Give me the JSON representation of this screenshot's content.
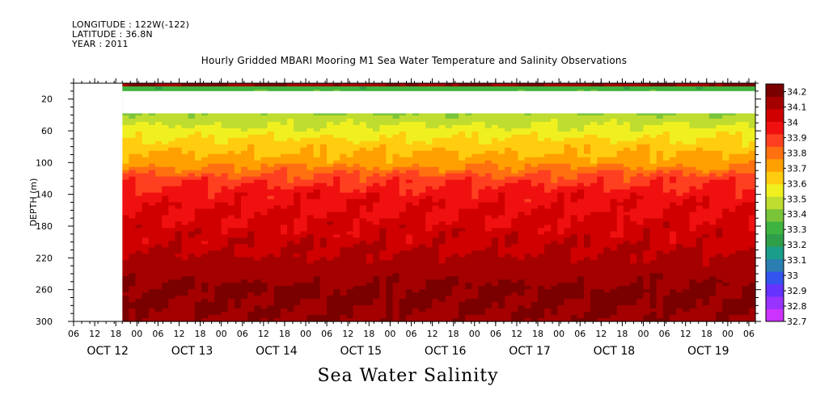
{
  "header": {
    "longitude": "LONGITUDE : 122W(-122)",
    "latitude": "LATITUDE : 36.8N",
    "year": "YEAR : 2011",
    "title": "Hourly Gridded MBARI Mooring M1 Sea Water Temperature and Salinity Observations"
  },
  "footer_title": "Sea Water Salinity",
  "chart_data": {
    "type": "heatmap",
    "title": "Hourly Gridded MBARI Mooring M1 Sea Water Temperature and Salinity Observations",
    "xlabel": "",
    "ylabel": "DEPTH (m)",
    "caption": "Sea Water Salinity",
    "x_range_hours": [
      0,
      84
    ],
    "x_ticks": [
      "06",
      "12",
      "18",
      "00",
      "06",
      "12",
      "18",
      "00",
      "06",
      "12",
      "18",
      "00",
      "06",
      "12",
      "18",
      "00",
      "06",
      "12",
      "18",
      "00",
      "06",
      "12",
      "18",
      "00",
      "06",
      "12",
      "18",
      "00",
      "06",
      "12",
      "18",
      "00",
      "06"
    ],
    "x_dates": [
      "OCT 12",
      "OCT 13",
      "OCT 14",
      "OCT 15",
      "OCT 16",
      "OCT 17",
      "OCT 18",
      "OCT 19"
    ],
    "y_range": [
      300,
      0
    ],
    "y_ticks": [
      20,
      60,
      100,
      140,
      180,
      220,
      260,
      300
    ],
    "colorbar": {
      "levels": [
        "34.2",
        "34.1",
        "34",
        "33.9",
        "33.8",
        "33.7",
        "33.6",
        "33.5",
        "33.4",
        "33.3",
        "33.2",
        "33.1",
        "33",
        "32.9",
        "32.8",
        "32.7"
      ],
      "min": 32.7,
      "max": 34.25,
      "colors": [
        "#cc33ff",
        "#9933ff",
        "#6633ff",
        "#3355ee",
        "#2a7fb0",
        "#1a9e8a",
        "#2e9e48",
        "#3fb33f",
        "#7ac43a",
        "#bfdc30",
        "#f0f020",
        "#ffcc10",
        "#ffa000",
        "#ff7010",
        "#ff4020",
        "#f01010",
        "#d00000",
        "#a50000",
        "#7a0000"
      ]
    },
    "data_start_hour": 6,
    "no_data_depth_band": [
      10,
      38
    ],
    "depth_profile_mean": [
      {
        "depth": 5,
        "value": 33.3
      },
      {
        "depth": 40,
        "value": 33.45
      },
      {
        "depth": 60,
        "value": 33.55
      },
      {
        "depth": 80,
        "value": 33.65
      },
      {
        "depth": 100,
        "value": 33.72
      },
      {
        "depth": 120,
        "value": 33.88
      },
      {
        "depth": 140,
        "value": 33.97
      },
      {
        "depth": 180,
        "value": 34.03
      },
      {
        "depth": 220,
        "value": 34.1
      },
      {
        "depth": 260,
        "value": 34.18
      },
      {
        "depth": 300,
        "value": 34.16
      }
    ]
  }
}
